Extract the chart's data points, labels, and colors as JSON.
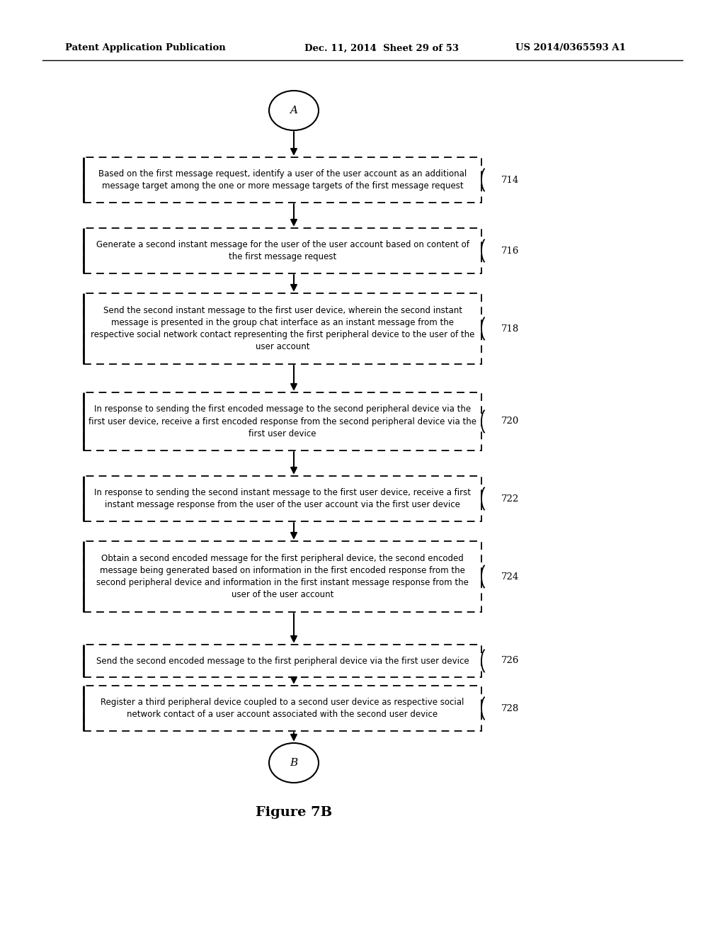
{
  "header_left": "Patent Application Publication",
  "header_center": "Dec. 11, 2014  Sheet 29 of 53",
  "header_right": "US 2014/0365593 A1",
  "figure_label": "Figure 7B",
  "start_connector": "A",
  "end_connector": "B",
  "boxes": [
    {
      "label": "Based on the first message request, identify a user of the user account as an additional\nmessage target among the one or more message targets of the first message request",
      "ref": "714",
      "lines": 2
    },
    {
      "label": "Generate a second instant message for the user of the user account based on content of\nthe first message request",
      "ref": "716",
      "lines": 2
    },
    {
      "label": "Send the second instant message to the first user device, wherein the second instant\nmessage is presented in the group chat interface as an instant message from the\nrespective social network contact representing the first peripheral device to the user of the\nuser account",
      "ref": "718",
      "lines": 4
    },
    {
      "label": "In response to sending the first encoded message to the second peripheral device via the\nfirst user device, receive a first encoded response from the second peripheral device via the\nfirst user device",
      "ref": "720",
      "lines": 3
    },
    {
      "label": "In response to sending the second instant message to the first user device, receive a first\ninstant message response from the user of the user account via the first user device",
      "ref": "722",
      "lines": 2
    },
    {
      "label": "Obtain a second encoded message for the first peripheral device, the second encoded\nmessage being generated based on information in the first encoded response from the\nsecond peripheral device and information in the first instant message response from the\nuser of the user account",
      "ref": "724",
      "lines": 4
    },
    {
      "label": "Send the second encoded message to the first peripheral device via the first user device",
      "ref": "726",
      "lines": 1
    },
    {
      "label": "Register a third peripheral device coupled to a second user device as respective social\nnetwork contact of a user account associated with the second user device",
      "ref": "728",
      "lines": 2
    }
  ],
  "background_color": "#ffffff",
  "box_edge_color": "#000000",
  "text_color": "#000000"
}
